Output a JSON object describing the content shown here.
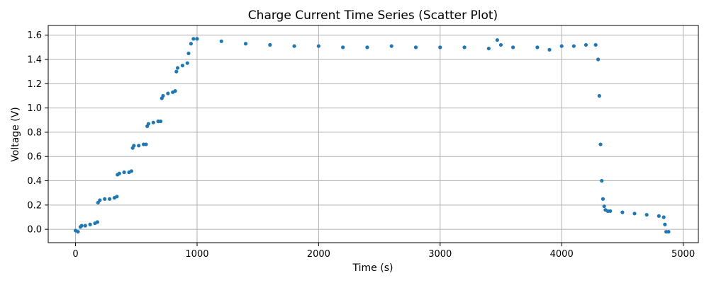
{
  "chart_data": {
    "type": "scatter",
    "title": "Charge Current Time Series (Scatter Plot)",
    "xlabel": "Time (s)",
    "ylabel": "Voltage (V)",
    "xlim": [
      -225,
      5125
    ],
    "ylim": [
      -0.11,
      1.68
    ],
    "xticks": [
      0,
      1000,
      2000,
      3000,
      4000,
      5000
    ],
    "yticks": [
      0.0,
      0.2,
      0.4,
      0.6,
      0.8,
      1.0,
      1.2,
      1.4,
      1.6
    ],
    "xtick_labels": [
      "0",
      "1000",
      "2000",
      "3000",
      "4000",
      "5000"
    ],
    "ytick_labels": [
      "0.0",
      "0.2",
      "0.4",
      "0.6",
      "0.8",
      "1.0",
      "1.2",
      "1.4",
      "1.6"
    ],
    "grid": true,
    "legend": "none",
    "marker_color": "#1f77b4",
    "series": [
      {
        "x": [
          0,
          20,
          40,
          50,
          80,
          120,
          160,
          180,
          185,
          200,
          240,
          280,
          320,
          340,
          345,
          360,
          400,
          440,
          460,
          470,
          480,
          520,
          560,
          580,
          590,
          600,
          640,
          680,
          700,
          710,
          720,
          760,
          800,
          820,
          830,
          840,
          880,
          920,
          930,
          950,
          970,
          1000,
          1200,
          1400,
          1600,
          1800,
          2000,
          2200,
          2400,
          2600,
          2800,
          3000,
          3200,
          3400,
          3470,
          3500,
          3600,
          3800,
          3900,
          4000,
          4100,
          4200,
          4280,
          4300,
          4310,
          4320,
          4330,
          4340,
          4350,
          4360,
          4380,
          4400,
          4500,
          4600,
          4700,
          4800,
          4840,
          4850,
          4860,
          4880
        ],
        "y": [
          -0.01,
          -0.02,
          0.02,
          0.03,
          0.03,
          0.04,
          0.05,
          0.06,
          0.22,
          0.24,
          0.25,
          0.25,
          0.26,
          0.27,
          0.45,
          0.46,
          0.47,
          0.47,
          0.48,
          0.67,
          0.69,
          0.69,
          0.7,
          0.7,
          0.85,
          0.87,
          0.88,
          0.89,
          0.89,
          1.08,
          1.1,
          1.12,
          1.13,
          1.14,
          1.3,
          1.33,
          1.35,
          1.37,
          1.45,
          1.53,
          1.57,
          1.57,
          1.55,
          1.53,
          1.52,
          1.51,
          1.51,
          1.5,
          1.5,
          1.51,
          1.5,
          1.5,
          1.5,
          1.49,
          1.56,
          1.52,
          1.5,
          1.5,
          1.48,
          1.51,
          1.51,
          1.52,
          1.52,
          1.4,
          1.1,
          0.7,
          0.4,
          0.25,
          0.19,
          0.16,
          0.15,
          0.15,
          0.14,
          0.13,
          0.12,
          0.11,
          0.1,
          0.04,
          -0.02,
          -0.02
        ]
      }
    ]
  }
}
